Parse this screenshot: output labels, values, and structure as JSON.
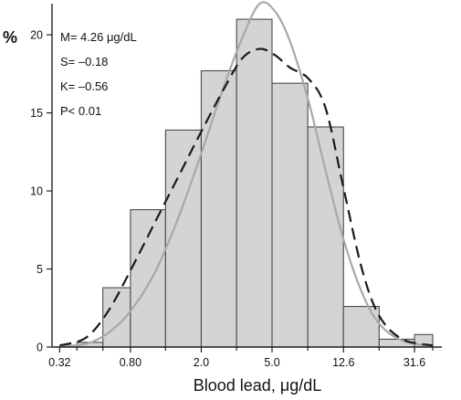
{
  "chart_data": {
    "type": "bar",
    "xlabel": "Blood lead, μg/dL",
    "ylabel": "%",
    "x_scale": "log",
    "ylim": [
      0,
      22
    ],
    "xlim": [
      0.29,
      45
    ],
    "y_ticks": [
      0,
      5,
      10,
      15,
      20
    ],
    "x_ticks": [
      {
        "value": 0.32,
        "label": "0.32"
      },
      {
        "value": 0.8,
        "label": "0.80"
      },
      {
        "value": 2.0,
        "label": "2.0"
      },
      {
        "value": 5.0,
        "label": "5.0"
      },
      {
        "value": 12.6,
        "label": "12.6"
      },
      {
        "value": 31.6,
        "label": "31.6"
      }
    ],
    "bins": [
      {
        "from": 0.4,
        "to": 0.56,
        "value": 0.3
      },
      {
        "from": 0.56,
        "to": 0.8,
        "value": 3.8
      },
      {
        "from": 0.8,
        "to": 1.26,
        "value": 8.8
      },
      {
        "from": 1.26,
        "to": 2.0,
        "value": 13.9
      },
      {
        "from": 2.0,
        "to": 3.16,
        "value": 17.7
      },
      {
        "from": 3.16,
        "to": 5.0,
        "value": 21.0
      },
      {
        "from": 5.0,
        "to": 7.94,
        "value": 16.9
      },
      {
        "from": 7.94,
        "to": 12.6,
        "value": 14.1
      },
      {
        "from": 12.6,
        "to": 20.0,
        "value": 2.6
      },
      {
        "from": 20.0,
        "to": 31.6,
        "value": 0.5
      },
      {
        "from": 31.6,
        "to": 40.0,
        "value": 0.8
      }
    ],
    "series": [
      {
        "style": "solid-gray",
        "x": [
          0.32,
          0.45,
          0.6,
          0.8,
          1.1,
          1.5,
          2.0,
          2.7,
          3.4,
          4.26,
          5.2,
          6.3,
          8.0,
          10.0,
          12.6,
          16.0,
          20.0,
          27.0,
          40.0
        ],
        "y": [
          0.05,
          0.2,
          0.9,
          2.3,
          4.8,
          8.4,
          12.4,
          16.8,
          19.8,
          22.0,
          21.5,
          19.6,
          15.8,
          11.3,
          6.9,
          3.5,
          1.5,
          0.4,
          0.05
        ]
      },
      {
        "style": "dashed-black",
        "x": [
          0.32,
          0.45,
          0.6,
          0.8,
          1.1,
          1.5,
          2.0,
          2.7,
          3.4,
          4.26,
          5.2,
          6.3,
          8.0,
          10.0,
          12.6,
          16.0,
          20.0,
          27.0,
          40.0
        ],
        "y": [
          0.1,
          0.6,
          2.3,
          4.9,
          8.0,
          11.0,
          13.8,
          16.6,
          18.5,
          19.1,
          18.7,
          17.9,
          17.2,
          15.3,
          10.2,
          5.0,
          2.0,
          0.5,
          0.1
        ]
      }
    ],
    "annotations": [
      "M= 4.26 μg/dL",
      "S= –0.18",
      "K= –0.56",
      "P< 0.01"
    ],
    "grid": false,
    "legend": "none"
  }
}
